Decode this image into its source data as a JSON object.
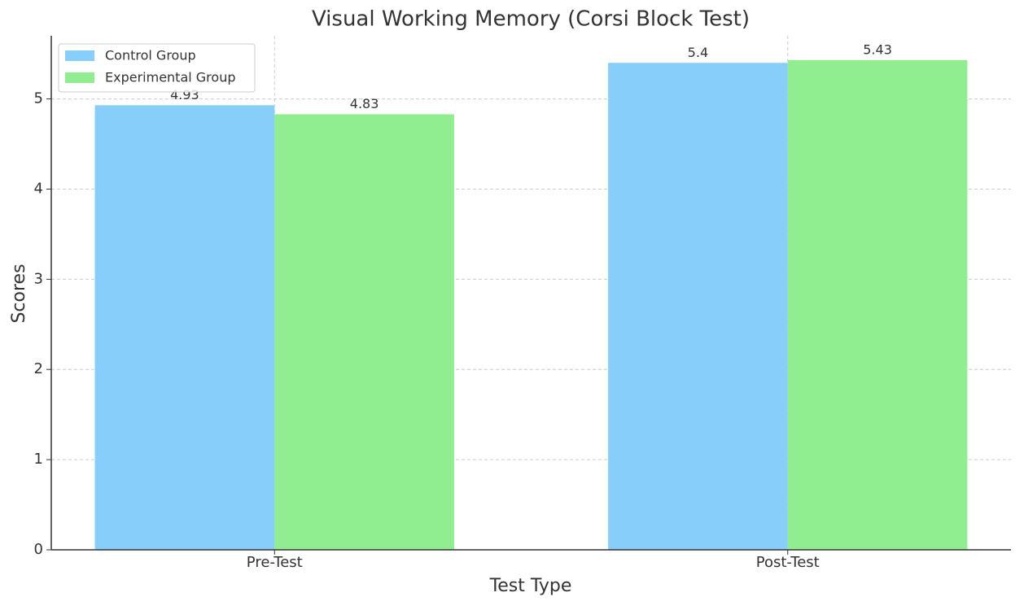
{
  "chart_data": {
    "type": "bar",
    "title": "Visual Working Memory (Corsi Block Test)",
    "x_label": "Test Type",
    "y_label": "Scores",
    "categories": [
      "Pre-Test",
      "Post-Test"
    ],
    "series": [
      {
        "name": "Control Group",
        "color": "#87cefa",
        "values": [
          4.93,
          5.4
        ]
      },
      {
        "name": "Experimental Group",
        "color": "#90ee90",
        "values": [
          4.83,
          5.43
        ]
      }
    ],
    "ylim": [
      0,
      5.7
    ],
    "yticks": [
      0,
      1,
      2,
      3,
      4,
      5
    ],
    "grid": true,
    "legend": "upper left"
  }
}
